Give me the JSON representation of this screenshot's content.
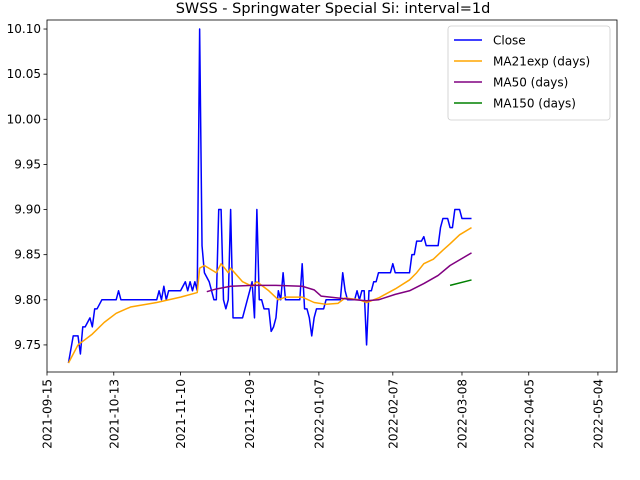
{
  "chart_data": {
    "type": "line",
    "title": "SWSS - Springwater Special Si: interval=1d",
    "xlabel": "",
    "ylabel": "",
    "x_type": "date",
    "xlim": [
      "2021-09-15",
      "2022-05-12"
    ],
    "ylim": [
      9.72,
      10.11
    ],
    "x_ticks": [
      "2021-09-15",
      "2021-10-13",
      "2021-11-10",
      "2021-12-09",
      "2022-01-07",
      "2022-02-07",
      "2022-03-08",
      "2022-04-05",
      "2022-05-04"
    ],
    "y_ticks": [
      9.75,
      9.8,
      9.85,
      9.9,
      9.95,
      10.0,
      10.05,
      10.1
    ],
    "y_tick_labels": [
      "9.75",
      "9.80",
      "9.85",
      "9.90",
      "9.95",
      "10.00",
      "10.05",
      "10.10"
    ],
    "grid": false,
    "legend_position": "top-right",
    "series": [
      {
        "name": "Close",
        "color": "#0000ff",
        "points": [
          [
            "2021-09-24",
            9.73
          ],
          [
            "2021-09-26",
            9.76
          ],
          [
            "2021-09-28",
            9.76
          ],
          [
            "2021-09-29",
            9.74
          ],
          [
            "2021-09-30",
            9.77
          ],
          [
            "2021-10-01",
            9.77
          ],
          [
            "2021-10-03",
            9.78
          ],
          [
            "2021-10-04",
            9.77
          ],
          [
            "2021-10-05",
            9.79
          ],
          [
            "2021-10-06",
            9.79
          ],
          [
            "2021-10-08",
            9.8
          ],
          [
            "2021-10-09",
            9.8
          ],
          [
            "2021-10-11",
            9.8
          ],
          [
            "2021-10-14",
            9.8
          ],
          [
            "2021-10-15",
            9.81
          ],
          [
            "2021-10-16",
            9.8
          ],
          [
            "2021-10-20",
            9.8
          ],
          [
            "2021-10-26",
            9.8
          ],
          [
            "2021-10-31",
            9.8
          ],
          [
            "2021-11-01",
            9.81
          ],
          [
            "2021-11-02",
            9.8
          ],
          [
            "2021-11-03",
            9.815
          ],
          [
            "2021-11-04",
            9.8
          ],
          [
            "2021-11-05",
            9.81
          ],
          [
            "2021-11-09",
            9.81
          ],
          [
            "2021-11-10",
            9.81
          ],
          [
            "2021-11-12",
            9.82
          ],
          [
            "2021-11-13",
            9.81
          ],
          [
            "2021-11-14",
            9.82
          ],
          [
            "2021-11-15",
            9.81
          ],
          [
            "2021-11-16",
            9.82
          ],
          [
            "2021-11-17",
            9.81
          ],
          [
            "2021-11-18",
            10.1
          ],
          [
            "2021-11-19",
            9.86
          ],
          [
            "2021-11-20",
            9.83
          ],
          [
            "2021-11-22",
            9.82
          ],
          [
            "2021-11-24",
            9.8
          ],
          [
            "2021-11-25",
            9.8
          ],
          [
            "2021-11-26",
            9.9
          ],
          [
            "2021-11-27",
            9.9
          ],
          [
            "2021-11-28",
            9.8
          ],
          [
            "2021-11-29",
            9.79
          ],
          [
            "2021-11-30",
            9.8
          ],
          [
            "2021-12-01",
            9.9
          ],
          [
            "2021-12-02",
            9.78
          ],
          [
            "2021-12-05",
            9.78
          ],
          [
            "2021-12-06",
            9.78
          ],
          [
            "2021-12-09",
            9.81
          ],
          [
            "2021-12-10",
            9.82
          ],
          [
            "2021-12-11",
            9.78
          ],
          [
            "2021-12-12",
            9.9
          ],
          [
            "2021-12-13",
            9.8
          ],
          [
            "2021-12-14",
            9.8
          ],
          [
            "2021-12-15",
            9.79
          ],
          [
            "2021-12-17",
            9.79
          ],
          [
            "2021-12-18",
            9.765
          ],
          [
            "2021-12-19",
            9.77
          ],
          [
            "2021-12-20",
            9.78
          ],
          [
            "2021-12-21",
            9.81
          ],
          [
            "2021-12-22",
            9.8
          ],
          [
            "2021-12-23",
            9.83
          ],
          [
            "2021-12-24",
            9.8
          ],
          [
            "2021-12-27",
            9.8
          ],
          [
            "2021-12-30",
            9.8
          ],
          [
            "2021-12-31",
            9.84
          ],
          [
            "2022-01-01",
            9.79
          ],
          [
            "2022-01-02",
            9.79
          ],
          [
            "2022-01-03",
            9.78
          ],
          [
            "2022-01-04",
            9.76
          ],
          [
            "2022-01-05",
            9.78
          ],
          [
            "2022-01-06",
            9.79
          ],
          [
            "2022-01-09",
            9.79
          ],
          [
            "2022-01-10",
            9.8
          ],
          [
            "2022-01-12",
            9.8
          ],
          [
            "2022-01-15",
            9.8
          ],
          [
            "2022-01-16",
            9.8
          ],
          [
            "2022-01-17",
            9.83
          ],
          [
            "2022-01-18",
            9.81
          ],
          [
            "2022-01-19",
            9.8
          ],
          [
            "2022-01-21",
            9.8
          ],
          [
            "2022-01-22",
            9.8
          ],
          [
            "2022-01-23",
            9.81
          ],
          [
            "2022-01-24",
            9.8
          ],
          [
            "2022-01-25",
            9.81
          ],
          [
            "2022-01-26",
            9.81
          ],
          [
            "2022-01-27",
            9.75
          ],
          [
            "2022-01-28",
            9.81
          ],
          [
            "2022-01-29",
            9.81
          ],
          [
            "2022-01-30",
            9.82
          ],
          [
            "2022-01-31",
            9.82
          ],
          [
            "2022-02-01",
            9.83
          ],
          [
            "2022-02-06",
            9.83
          ],
          [
            "2022-02-07",
            9.84
          ],
          [
            "2022-02-08",
            9.83
          ],
          [
            "2022-02-10",
            9.83
          ],
          [
            "2022-02-14",
            9.83
          ],
          [
            "2022-02-15",
            9.85
          ],
          [
            "2022-02-16",
            9.85
          ],
          [
            "2022-02-17",
            9.865
          ],
          [
            "2022-02-19",
            9.865
          ],
          [
            "2022-02-20",
            9.87
          ],
          [
            "2022-02-21",
            9.86
          ],
          [
            "2022-02-24",
            9.86
          ],
          [
            "2022-02-26",
            9.86
          ],
          [
            "2022-02-27",
            9.88
          ],
          [
            "2022-02-28",
            9.89
          ],
          [
            "2022-03-02",
            9.89
          ],
          [
            "2022-03-03",
            9.88
          ],
          [
            "2022-03-04",
            9.88
          ],
          [
            "2022-03-05",
            9.9
          ],
          [
            "2022-03-07",
            9.9
          ],
          [
            "2022-03-08",
            9.89
          ],
          [
            "2022-03-12",
            9.89
          ]
        ]
      },
      {
        "name": "MA21exp (days)",
        "color": "#ffa500",
        "points": [
          [
            "2021-09-24",
            9.73
          ],
          [
            "2021-09-28",
            9.75
          ],
          [
            "2021-10-04",
            9.762
          ],
          [
            "2021-10-09",
            9.775
          ],
          [
            "2021-10-14",
            9.785
          ],
          [
            "2021-10-20",
            9.792
          ],
          [
            "2021-10-31",
            9.797
          ],
          [
            "2021-11-10",
            9.803
          ],
          [
            "2021-11-17",
            9.808
          ],
          [
            "2021-11-18",
            9.835
          ],
          [
            "2021-11-20",
            9.838
          ],
          [
            "2021-11-25",
            9.83
          ],
          [
            "2021-11-27",
            9.84
          ],
          [
            "2021-11-30",
            9.83
          ],
          [
            "2021-12-01",
            9.835
          ],
          [
            "2021-12-06",
            9.82
          ],
          [
            "2021-12-10",
            9.815
          ],
          [
            "2021-12-12",
            9.82
          ],
          [
            "2021-12-17",
            9.81
          ],
          [
            "2021-12-21",
            9.8
          ],
          [
            "2021-12-24",
            9.803
          ],
          [
            "2021-12-31",
            9.803
          ],
          [
            "2022-01-05",
            9.797
          ],
          [
            "2022-01-10",
            9.795
          ],
          [
            "2022-01-15",
            9.796
          ],
          [
            "2022-01-18",
            9.802
          ],
          [
            "2022-01-24",
            9.8
          ],
          [
            "2022-01-27",
            9.797
          ],
          [
            "2022-02-01",
            9.802
          ],
          [
            "2022-02-08",
            9.812
          ],
          [
            "2022-02-14",
            9.822
          ],
          [
            "2022-02-17",
            9.83
          ],
          [
            "2022-02-20",
            9.84
          ],
          [
            "2022-02-24",
            9.845
          ],
          [
            "2022-02-28",
            9.855
          ],
          [
            "2022-03-03",
            9.862
          ],
          [
            "2022-03-07",
            9.872
          ],
          [
            "2022-03-12",
            9.88
          ]
        ]
      },
      {
        "name": "MA50 (days)",
        "color": "#800080",
        "points": [
          [
            "2021-11-21",
            9.809
          ],
          [
            "2021-11-25",
            9.812
          ],
          [
            "2021-12-01",
            9.815
          ],
          [
            "2021-12-10",
            9.816
          ],
          [
            "2021-12-20",
            9.816
          ],
          [
            "2021-12-31",
            9.815
          ],
          [
            "2022-01-05",
            9.811
          ],
          [
            "2022-01-08",
            9.804
          ],
          [
            "2022-01-15",
            9.802
          ],
          [
            "2022-01-22",
            9.8
          ],
          [
            "2022-01-27",
            9.799
          ],
          [
            "2022-02-01",
            9.8
          ],
          [
            "2022-02-08",
            9.806
          ],
          [
            "2022-02-14",
            9.81
          ],
          [
            "2022-02-20",
            9.818
          ],
          [
            "2022-02-26",
            9.827
          ],
          [
            "2022-03-03",
            9.838
          ],
          [
            "2022-03-12",
            9.852
          ]
        ]
      },
      {
        "name": "MA150 (days)",
        "color": "#008000",
        "points": [
          [
            "2022-03-03",
            9.816
          ],
          [
            "2022-03-12",
            9.822
          ]
        ]
      }
    ]
  }
}
